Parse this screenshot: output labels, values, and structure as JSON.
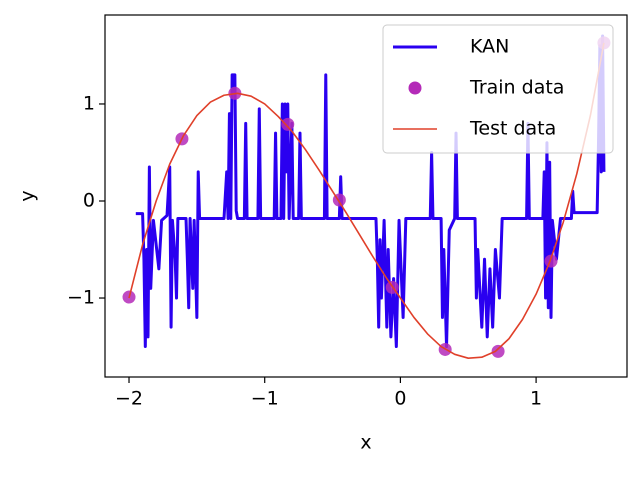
{
  "chart_data": {
    "type": "line",
    "xlabel": "x",
    "ylabel": "y",
    "xlim": [
      -2.177,
      1.67
    ],
    "ylim": [
      -1.814,
      1.917
    ],
    "xticks": [
      {
        "value": -2,
        "label": "−2"
      },
      {
        "value": -1,
        "label": "−1"
      },
      0,
      1
    ],
    "yticks": [
      {
        "value": -1,
        "label": "−1"
      },
      0,
      1
    ],
    "legend": "upper right",
    "series": [
      {
        "name": "KAN",
        "color": "#2a00f0",
        "mode": "line",
        "x": [
          -1.95,
          -1.9,
          -1.89,
          -1.88,
          -1.87,
          -1.86,
          -1.85,
          -1.84,
          -1.82,
          -1.78,
          -1.76,
          -1.72,
          -1.7,
          -1.69,
          -1.68,
          -1.66,
          -1.65,
          -1.64,
          -1.58,
          -1.57,
          -1.56,
          -1.55,
          -1.53,
          -1.52,
          -1.5,
          -1.49,
          -1.48,
          -1.3,
          -1.28,
          -1.27,
          -1.26,
          -1.25,
          -1.24,
          -1.22,
          -1.21,
          -1.2,
          -1.15,
          -1.14,
          -1.13,
          -1.05,
          -1.04,
          -1.03,
          -0.93,
          -0.92,
          -0.91,
          -0.88,
          -0.87,
          -0.86,
          -0.85,
          -0.84,
          -0.83,
          -0.82,
          -0.8,
          -0.79,
          -0.75,
          -0.74,
          -0.73,
          -0.56,
          -0.55,
          -0.54,
          -0.45,
          -0.44,
          -0.43,
          -0.18,
          -0.17,
          -0.16,
          -0.15,
          -0.14,
          -0.12,
          -0.1,
          -0.09,
          -0.07,
          -0.05,
          -0.03,
          -0.01,
          0.02,
          0.04,
          0.22,
          0.23,
          0.24,
          0.3,
          0.31,
          0.32,
          0.34,
          0.36,
          0.4,
          0.41,
          0.42,
          0.55,
          0.56,
          0.57,
          0.6,
          0.62,
          0.64,
          0.66,
          0.68,
          0.7,
          0.73,
          0.75,
          0.93,
          0.94,
          0.95,
          1.05,
          1.06,
          1.07,
          1.08,
          1.09,
          1.1,
          1.11,
          1.12,
          1.15,
          1.18,
          1.26,
          1.27,
          1.28,
          1.45,
          1.46,
          1.47,
          1.48,
          1.49,
          1.5
        ],
        "values": [
          -0.13,
          -0.13,
          -0.6,
          -1.5,
          -0.5,
          -1.4,
          0.35,
          -0.9,
          -0.2,
          -0.7,
          -0.2,
          -0.15,
          0.35,
          -1.3,
          -0.2,
          -0.6,
          -1.0,
          -0.18,
          -0.18,
          -0.6,
          -1.1,
          -0.18,
          -0.9,
          -0.2,
          -1.2,
          0.3,
          -0.18,
          -0.18,
          0.3,
          -0.18,
          0.9,
          -0.18,
          1.3,
          1.3,
          -0.1,
          -0.18,
          -0.18,
          0.8,
          -0.18,
          -0.18,
          0.95,
          -0.18,
          -0.18,
          0.7,
          -0.18,
          -0.18,
          1.0,
          -0.18,
          1.0,
          0.3,
          1.0,
          -0.18,
          0.8,
          -0.18,
          -0.18,
          0.7,
          -0.18,
          -0.18,
          1.3,
          -0.18,
          -0.18,
          0.25,
          -0.18,
          -0.18,
          -0.6,
          -1.3,
          -0.4,
          -1.0,
          -0.2,
          -1.3,
          -0.5,
          -1.4,
          -0.8,
          -1.5,
          -0.2,
          -1.2,
          -0.18,
          -0.18,
          0.5,
          -0.18,
          -0.18,
          -1.2,
          -0.5,
          -1.5,
          -0.3,
          -0.18,
          0.7,
          -0.18,
          -0.18,
          -1.0,
          -0.5,
          -1.3,
          -0.6,
          -1.4,
          -0.7,
          -1.3,
          -0.5,
          -1.0,
          -0.18,
          -0.18,
          0.8,
          -0.18,
          -0.18,
          0.3,
          -1.0,
          0.6,
          -1.1,
          0.4,
          -1.2,
          -0.2,
          -0.6,
          -0.18,
          -0.18,
          0.1,
          -0.12,
          -0.12,
          0.6,
          1.6,
          0.3,
          1.7,
          0.3
        ]
      },
      {
        "name": "Train data",
        "color": "#b42ab8",
        "mode": "markers",
        "x": [
          -2,
          -1.61,
          -1.22,
          -0.83,
          -0.45,
          -0.06,
          0.33,
          0.72,
          1.11,
          1.5
        ],
        "values": [
          -0.99,
          0.64,
          1.11,
          0.79,
          0.01,
          -0.89,
          -1.53,
          -1.55,
          -0.62,
          1.63
        ]
      },
      {
        "name": "Test data",
        "color": "#e0402a",
        "mode": "line",
        "x": [
          -2,
          -1.9,
          -1.8,
          -1.7,
          -1.6,
          -1.5,
          -1.4,
          -1.3,
          -1.2,
          -1.1,
          -1.0,
          -0.9,
          -0.8,
          -0.7,
          -0.6,
          -0.5,
          -0.4,
          -0.3,
          -0.2,
          -0.1,
          0,
          0.1,
          0.2,
          0.3,
          0.4,
          0.5,
          0.6,
          0.7,
          0.8,
          0.9,
          1.0,
          1.1,
          1.2,
          1.3,
          1.4,
          1.5
        ],
        "values": [
          -1.0,
          -0.45,
          0.0,
          0.38,
          0.67,
          0.88,
          1.02,
          1.09,
          1.11,
          1.08,
          1.0,
          0.87,
          0.72,
          0.53,
          0.32,
          0.1,
          -0.12,
          -0.35,
          -0.58,
          -0.8,
          -1.0,
          -1.2,
          -1.37,
          -1.5,
          -1.58,
          -1.62,
          -1.61,
          -1.55,
          -1.42,
          -1.22,
          -0.96,
          -0.63,
          -0.22,
          0.28,
          0.88,
          1.63
        ]
      }
    ]
  }
}
